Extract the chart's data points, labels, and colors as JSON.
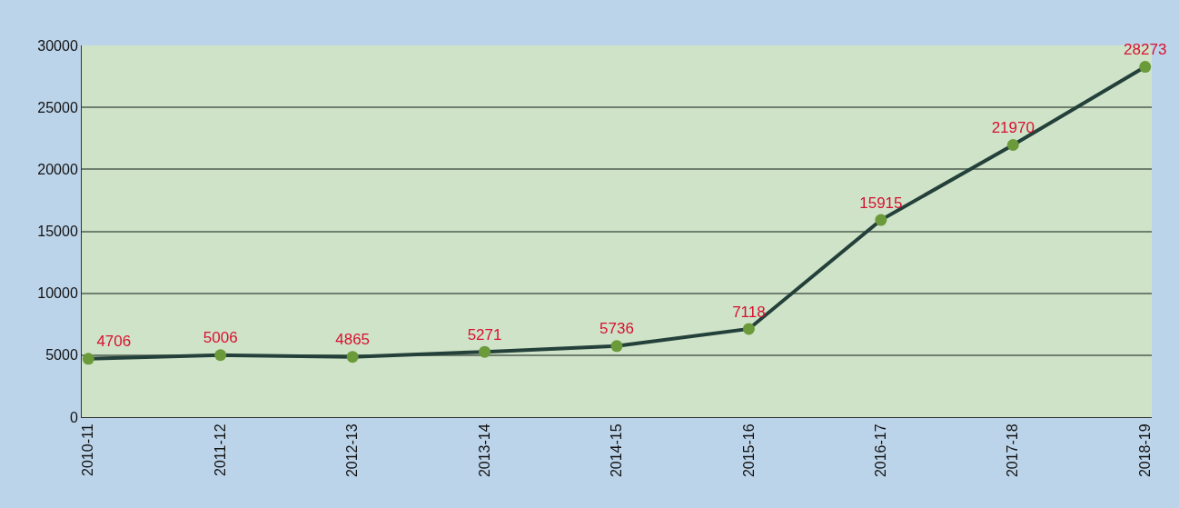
{
  "chart_data": {
    "type": "line",
    "categories": [
      "2010-11",
      "2011-12",
      "2012-13",
      "2013-14",
      "2014-15",
      "2015-16",
      "2016-17",
      "2017-18",
      "2018-19"
    ],
    "series": [
      {
        "color": "#24403a",
        "values": [
          4706,
          5006,
          4865,
          5271,
          5736,
          7118,
          15915,
          21970,
          28273
        ]
      }
    ],
    "ylim": [
      0,
      30000
    ],
    "yticks": [
      0,
      5000,
      10000,
      15000,
      20000,
      25000,
      30000
    ],
    "grid": "y",
    "marker": "circle",
    "data_labels": true,
    "legend": false
  }
}
